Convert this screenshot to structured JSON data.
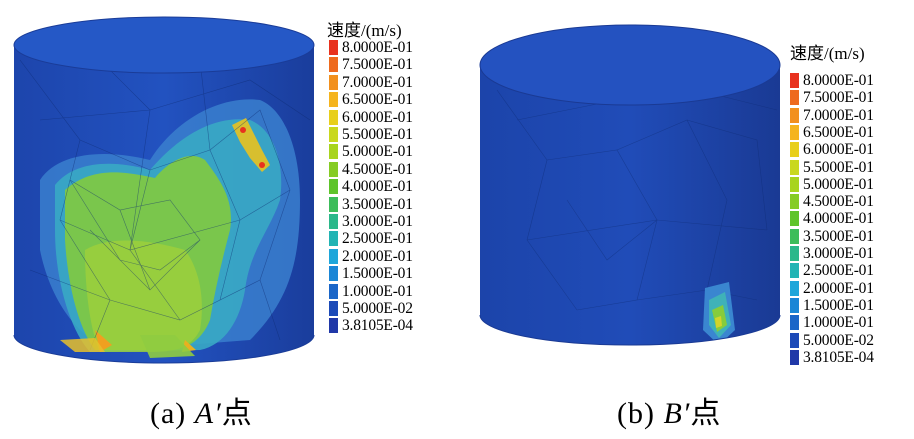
{
  "panels": [
    {
      "caption_prefix": "(a)",
      "caption_point": "A′",
      "caption_suffix": "点",
      "legend_title": "速度/(m/s)"
    },
    {
      "caption_prefix": "(b)",
      "caption_point": "B′",
      "caption_suffix": "点",
      "legend_title": "速度/(m/s)"
    }
  ],
  "legend": {
    "entries": [
      {
        "label": "8.0000E-01",
        "color": "#e8321e"
      },
      {
        "label": "7.5000E-01",
        "color": "#ee6a1e"
      },
      {
        "label": "7.0000E-01",
        "color": "#f2901e"
      },
      {
        "label": "6.5000E-01",
        "color": "#f5b41e"
      },
      {
        "label": "6.0000E-01",
        "color": "#e8cf1c"
      },
      {
        "label": "5.5000E-01",
        "color": "#c9d81e"
      },
      {
        "label": "5.0000E-01",
        "color": "#a8d41e"
      },
      {
        "label": "4.5000E-01",
        "color": "#86cc24"
      },
      {
        "label": "4.0000E-01",
        "color": "#5ec42a"
      },
      {
        "label": "3.5000E-01",
        "color": "#3cbd5a"
      },
      {
        "label": "3.0000E-01",
        "color": "#2bb88a"
      },
      {
        "label": "2.5000E-01",
        "color": "#22b4b4"
      },
      {
        "label": "2.0000E-01",
        "color": "#1ea6da"
      },
      {
        "label": "1.5000E-01",
        "color": "#1a86d6"
      },
      {
        "label": "1.0000E-01",
        "color": "#1a66c8"
      },
      {
        "label": "5.0000E-02",
        "color": "#1c4ab8"
      },
      {
        "label": "3.8105E-04",
        "color": "#2038a8"
      }
    ]
  },
  "colors": {
    "cylinder_base": "#1e47b0",
    "cylinder_top": "#2356c4",
    "cylinder_dark": "#1a3c98",
    "zone_light_blue": "#3f8ed6",
    "zone_cyan": "#3fb0c8",
    "zone_green": "#7cc84a",
    "zone_yellow_green": "#a6d03a",
    "hotspot_orange": "#f0a020",
    "hotspot_red": "#e8321e"
  }
}
